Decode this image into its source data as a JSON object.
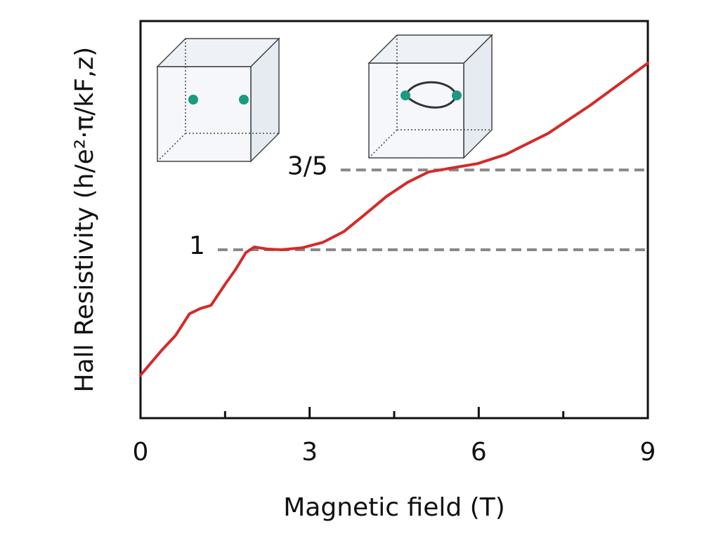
{
  "chart_data": {
    "type": "line",
    "xlabel": "Magnetic field (T)",
    "ylabel": "Hall Resistivity (h/e²·π/kF,z)",
    "xlim": [
      0,
      9
    ],
    "xticks": [
      0,
      3,
      6,
      9
    ],
    "xminor": [
      1.5,
      4.5,
      7.5
    ],
    "ylim": [
      0,
      100
    ],
    "series": [
      {
        "color": "#d42a2a",
        "x": [
          0,
          0.37,
          0.62,
          0.87,
          1.06,
          1.25,
          1.5,
          1.68,
          1.87,
          2.02,
          2.24,
          2.49,
          2.87,
          3.24,
          3.61,
          3.99,
          4.36,
          4.74,
          5.11,
          5.48,
          5.98,
          6.48,
          7.23,
          7.98,
          9
        ],
        "values": [
          10.8,
          17.0,
          20.8,
          26.3,
          27.6,
          28.4,
          33.7,
          37.3,
          41.7,
          43.1,
          42.6,
          42.4,
          42.9,
          44.3,
          47.0,
          51.4,
          55.8,
          59.4,
          62.0,
          62.9,
          64.1,
          66.4,
          71.7,
          78.8,
          89.4
        ]
      }
    ],
    "annotations": [
      {
        "text": "1",
        "y": 42.4,
        "x_start": 1.37
      },
      {
        "text": "3/5",
        "y": 62.5,
        "x_start": 3.55
      }
    ]
  }
}
